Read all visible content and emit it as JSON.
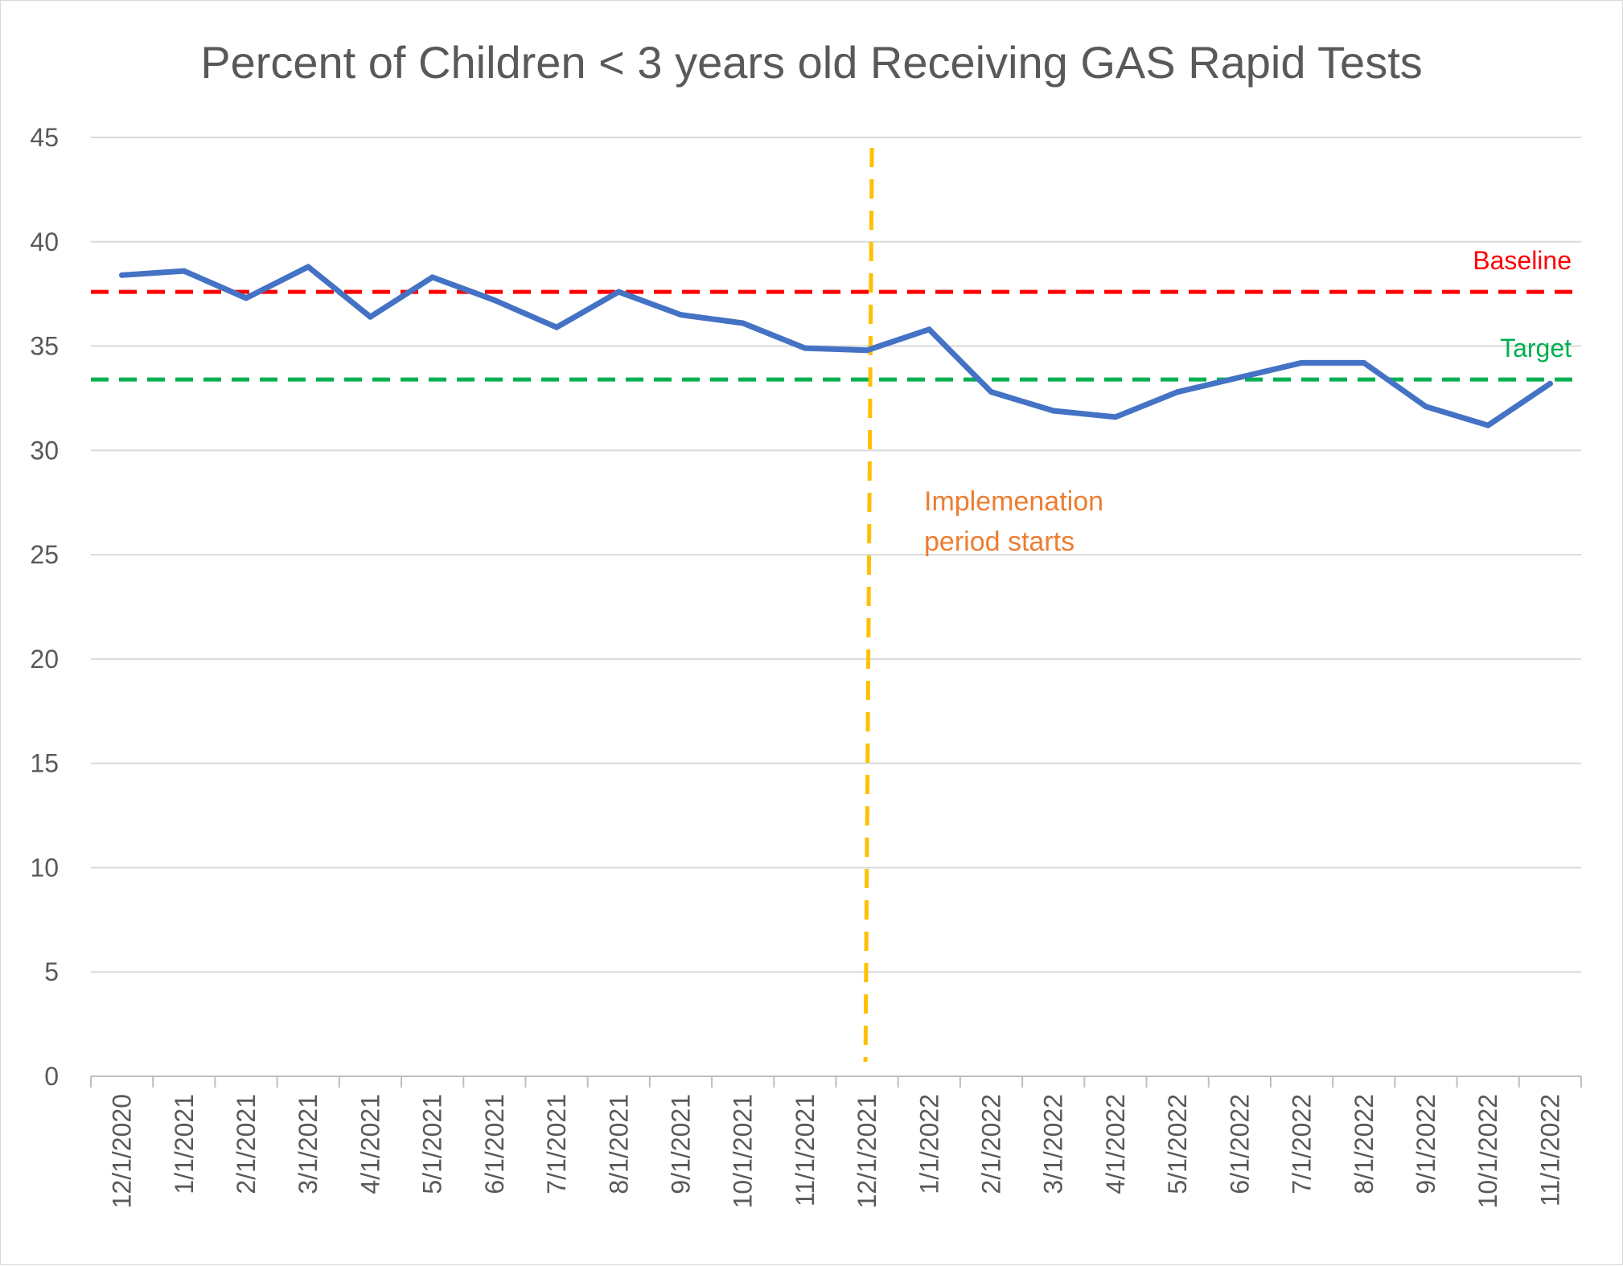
{
  "chart_data": {
    "type": "line",
    "title": "Percent of Children < 3 years old Receiving GAS Rapid Tests",
    "xlabel": "",
    "ylabel": "",
    "ylim": [
      0,
      45
    ],
    "yticks": [
      0,
      5,
      10,
      15,
      20,
      25,
      30,
      35,
      40,
      45
    ],
    "grid": true,
    "categories": [
      "12/1/2020",
      "1/1/2021",
      "2/1/2021",
      "3/1/2021",
      "4/1/2021",
      "5/1/2021",
      "6/1/2021",
      "7/1/2021",
      "8/1/2021",
      "9/1/2021",
      "10/1/2021",
      "11/1/2021",
      "12/1/2021",
      "1/1/2022",
      "2/1/2022",
      "3/1/2022",
      "4/1/2022",
      "5/1/2022",
      "6/1/2022",
      "7/1/2022",
      "8/1/2022",
      "9/1/2022",
      "10/1/2022",
      "11/1/2022"
    ],
    "series": [
      {
        "values": [
          38.4,
          38.6,
          37.3,
          38.8,
          36.4,
          38.3,
          37.2,
          35.9,
          37.6,
          36.5,
          36.1,
          34.9,
          34.8,
          35.8,
          32.8,
          31.9,
          31.6,
          32.8,
          33.5,
          34.2,
          34.2,
          32.1,
          31.2,
          33.2
        ],
        "color": "#4472C4"
      }
    ],
    "reference_lines": [
      {
        "label": "Baseline",
        "value": 37.6,
        "color": "#FF0000",
        "style": "dashed"
      },
      {
        "label": "Target",
        "value": 33.4,
        "color": "#00B050",
        "style": "dashed"
      }
    ],
    "annotations": [
      {
        "lines": [
          "Implemenation",
          "period starts"
        ],
        "at_category": "12/1/2021",
        "color": "#ED7D31",
        "marker_color": "#FFC000",
        "marker_style": "dashed-vertical"
      }
    ]
  }
}
